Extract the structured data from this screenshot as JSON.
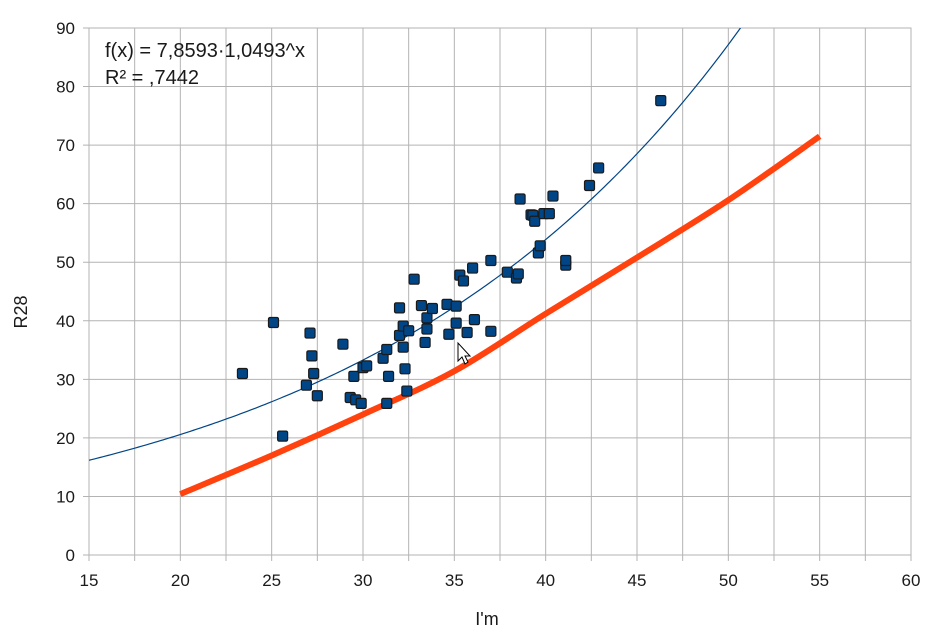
{
  "chart_data": {
    "type": "scatter",
    "xlabel": "I'm",
    "ylabel": "R28",
    "xlim": [
      15,
      60
    ],
    "ylim": [
      0,
      90
    ],
    "xticks": [
      15,
      20,
      25,
      30,
      35,
      40,
      45,
      50,
      55,
      60
    ],
    "yticks": [
      0,
      10,
      20,
      30,
      40,
      50,
      60,
      70,
      80,
      90
    ],
    "grid": true,
    "minor_x_step": 2.5,
    "annotations": {
      "equation": "f(x) = 7,8593·1,0493^x",
      "r_squared": "R² = ,7442"
    },
    "points": [
      [
        23.4,
        31.0
      ],
      [
        25.1,
        39.7
      ],
      [
        25.6,
        20.3
      ],
      [
        26.9,
        29.0
      ],
      [
        27.1,
        37.9
      ],
      [
        27.2,
        34.0
      ],
      [
        27.3,
        31.0
      ],
      [
        27.5,
        27.2
      ],
      [
        28.9,
        36.0
      ],
      [
        29.3,
        26.9
      ],
      [
        29.5,
        30.5
      ],
      [
        29.6,
        26.5
      ],
      [
        29.9,
        25.9
      ],
      [
        30.0,
        32.0
      ],
      [
        30.2,
        32.3
      ],
      [
        31.1,
        33.6
      ],
      [
        31.3,
        35.1
      ],
      [
        31.3,
        25.9
      ],
      [
        31.4,
        30.5
      ],
      [
        32.0,
        37.5
      ],
      [
        32.0,
        42.2
      ],
      [
        32.2,
        39.1
      ],
      [
        32.2,
        35.5
      ],
      [
        32.3,
        31.8
      ],
      [
        32.4,
        28.0
      ],
      [
        32.5,
        38.3
      ],
      [
        32.8,
        47.1
      ],
      [
        33.2,
        42.6
      ],
      [
        33.4,
        36.3
      ],
      [
        33.5,
        38.6
      ],
      [
        33.5,
        40.5
      ],
      [
        33.8,
        42.1
      ],
      [
        34.6,
        42.8
      ],
      [
        34.7,
        37.7
      ],
      [
        35.1,
        39.6
      ],
      [
        35.1,
        42.5
      ],
      [
        35.3,
        47.8
      ],
      [
        35.5,
        46.8
      ],
      [
        35.7,
        38.0
      ],
      [
        36.0,
        49.0
      ],
      [
        36.1,
        40.2
      ],
      [
        37.0,
        50.3
      ],
      [
        37.0,
        38.2
      ],
      [
        37.9,
        48.3
      ],
      [
        38.4,
        47.3
      ],
      [
        38.5,
        48.0
      ],
      [
        38.6,
        60.8
      ],
      [
        39.2,
        58.1
      ],
      [
        39.3,
        58.0
      ],
      [
        39.4,
        57.0
      ],
      [
        39.6,
        51.6
      ],
      [
        39.7,
        52.8
      ],
      [
        39.9,
        58.3
      ],
      [
        40.2,
        58.3
      ],
      [
        40.4,
        61.3
      ],
      [
        41.1,
        49.5
      ],
      [
        41.1,
        50.3
      ],
      [
        42.4,
        63.1
      ],
      [
        42.9,
        66.1
      ],
      [
        46.3,
        77.6
      ]
    ],
    "trend_fit": {
      "type": "exponential",
      "a": 7.8593,
      "b": 1.0493,
      "x_range": [
        15,
        60
      ],
      "color": "#004586"
    },
    "second_curve": {
      "x": [
        20,
        25,
        30,
        35,
        40,
        45,
        50,
        55
      ],
      "y": [
        10.4,
        17.0,
        24.0,
        31.4,
        41.2,
        50.8,
        60.6,
        71.5
      ],
      "color": "#ff420e"
    },
    "colors": {
      "points_fill": "#004586",
      "points_stroke": "#1a1a1a",
      "grid": "#b3b3b3"
    }
  }
}
